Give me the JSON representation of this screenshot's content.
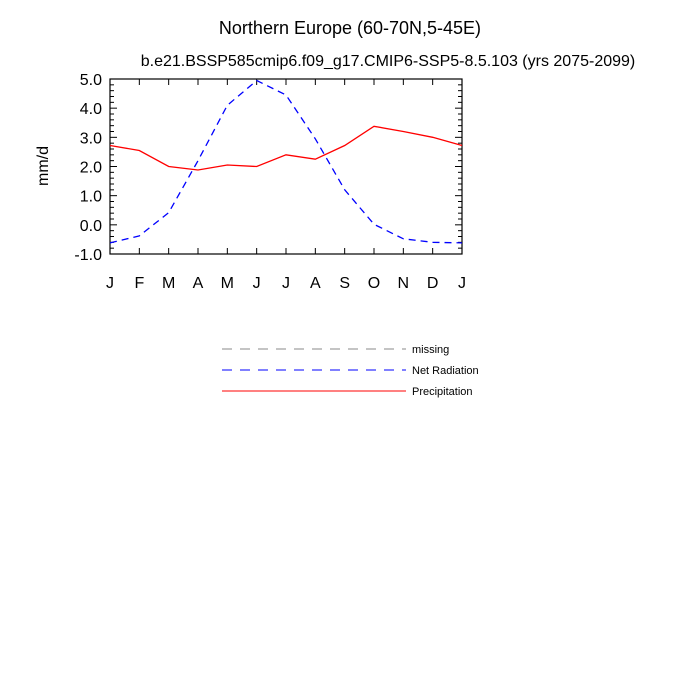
{
  "chart_data": {
    "type": "line",
    "title": "Northern Europe (60-70N,5-45E)",
    "subtitle": "b.e21.BSSP585cmip6.f09_g17.CMIP6-SSP5-8.5.103 (yrs 2075-2099)",
    "xlabel": "",
    "ylabel": "mm/d",
    "ylim": [
      -1.0,
      5.0
    ],
    "yticks": [
      "5.0",
      "4.0",
      "3.0",
      "2.0",
      "1.0",
      "0.0",
      "-1.0"
    ],
    "ytick_values": [
      5.0,
      4.0,
      3.0,
      2.0,
      1.0,
      0.0,
      -1.0
    ],
    "categories": [
      "J",
      "F",
      "M",
      "A",
      "M",
      "J",
      "J",
      "A",
      "S",
      "O",
      "N",
      "D",
      "J"
    ],
    "grid": false,
    "legend_position": "below",
    "series": [
      {
        "name": "Net Radiation",
        "color": "#0000ff",
        "style": "dashed",
        "values": [
          -0.62,
          -0.38,
          0.42,
          2.2,
          4.1,
          4.95,
          4.45,
          2.95,
          1.2,
          0.02,
          -0.48,
          -0.6,
          -0.62
        ]
      },
      {
        "name": "Precipitation",
        "color": "#ff0000",
        "style": "solid",
        "values": [
          2.72,
          2.55,
          2.0,
          1.88,
          2.05,
          2.0,
          2.4,
          2.25,
          2.72,
          3.38,
          3.2,
          3.0,
          2.72
        ]
      }
    ],
    "legend": [
      {
        "label": "missing",
        "color": "#888888",
        "style": "dashed"
      },
      {
        "label": "Net Radiation",
        "color": "#0000ff",
        "style": "dashed"
      },
      {
        "label": "Precipitation",
        "color": "#ff0000",
        "style": "solid"
      }
    ]
  }
}
